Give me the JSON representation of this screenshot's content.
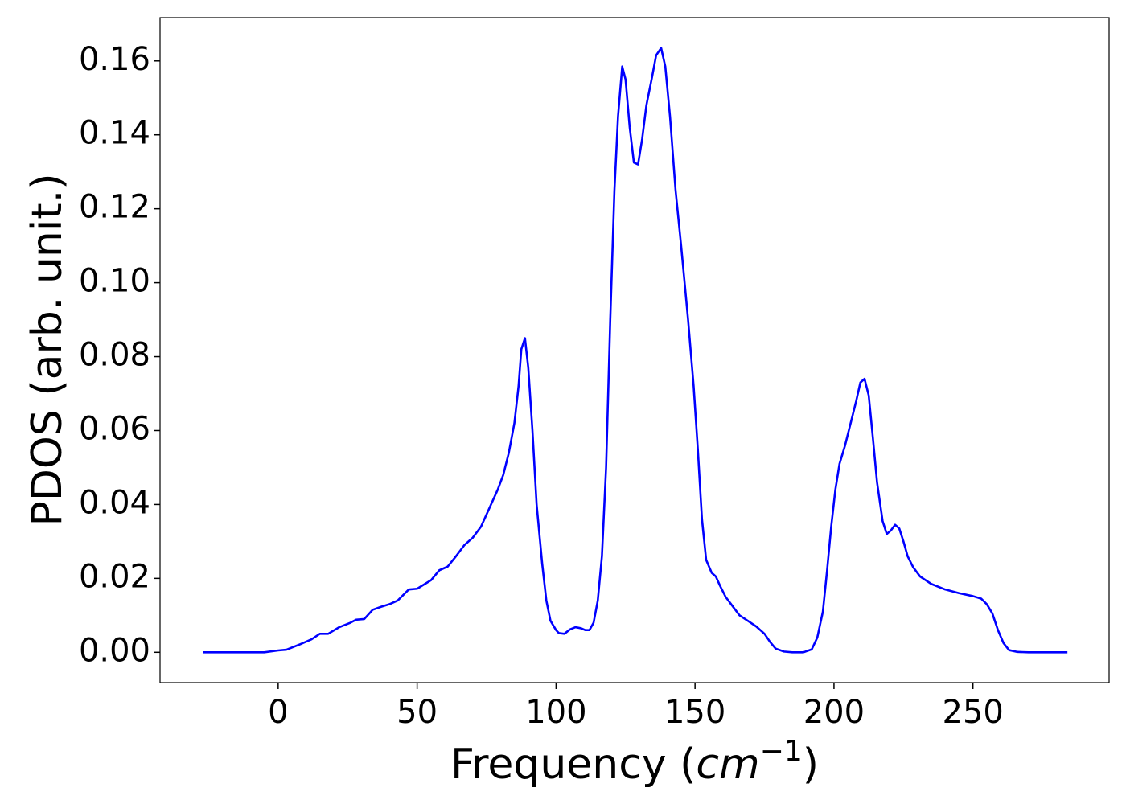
{
  "chart_data": {
    "type": "line",
    "ylabel": "PDOS (arb. unit.)",
    "xlabel": [
      "Frequency (",
      "cm",
      "−1",
      ")"
    ],
    "color": "#0000ff",
    "xlim": [
      -42.5,
      299.0
    ],
    "ylim": [
      -0.0082,
      0.1717
    ],
    "xticks": [
      0,
      50,
      100,
      150,
      200,
      250
    ],
    "yticks": [
      {
        "value": 0,
        "label": "0.00"
      },
      {
        "value": 0.02,
        "label": "0.02"
      },
      {
        "value": 0.04,
        "label": "0.04"
      },
      {
        "value": 0.06,
        "label": "0.06"
      },
      {
        "value": 0.08,
        "label": "0.08"
      },
      {
        "value": 0.1,
        "label": "0.10"
      },
      {
        "value": 0.12,
        "label": "0.12"
      },
      {
        "value": 0.14,
        "label": "0.14"
      },
      {
        "value": 0.16,
        "label": "0.16"
      }
    ],
    "x": [
      -27,
      -5,
      0,
      3,
      8,
      12,
      15,
      18,
      22,
      26,
      28,
      31,
      34,
      37,
      40,
      43,
      47,
      50,
      55,
      58,
      61,
      64,
      67,
      70,
      73,
      76,
      79,
      81,
      83,
      85,
      86.5,
      87.5,
      88.8,
      90,
      91.5,
      93,
      95,
      96.5,
      98,
      100,
      101,
      103,
      105,
      107,
      109,
      110.5,
      112,
      113.5,
      115,
      116.5,
      118,
      119.5,
      121,
      122.3,
      123.8,
      125,
      126.5,
      128,
      129.5,
      131,
      132.5,
      134.5,
      136,
      137.8,
      139.3,
      141,
      143,
      145,
      147.5,
      149.5,
      151,
      152.5,
      154,
      156,
      157.5,
      159,
      161,
      163,
      166,
      169,
      172,
      175,
      177,
      179,
      182,
      185,
      189,
      192,
      194,
      196,
      197.5,
      199,
      200.5,
      202,
      204,
      206,
      208,
      209.5,
      211,
      212.5,
      214,
      215.5,
      217.5,
      219,
      220.5,
      222,
      223.5,
      225,
      226.5,
      228.5,
      231,
      235,
      240,
      245,
      250,
      253,
      255,
      257,
      259,
      261,
      263,
      266,
      270,
      284
    ],
    "values": [
      0,
      0,
      0.0005,
      0.0007,
      0.0022,
      0.0035,
      0.005,
      0.005,
      0.0068,
      0.008,
      0.0088,
      0.009,
      0.0115,
      0.0123,
      0.013,
      0.014,
      0.017,
      0.0172,
      0.0195,
      0.0222,
      0.0232,
      0.026,
      0.029,
      0.031,
      0.034,
      0.039,
      0.044,
      0.048,
      0.054,
      0.062,
      0.072,
      0.082,
      0.085,
      0.077,
      0.06,
      0.04,
      0.024,
      0.014,
      0.0085,
      0.006,
      0.0052,
      0.005,
      0.0062,
      0.0068,
      0.0065,
      0.006,
      0.006,
      0.008,
      0.014,
      0.026,
      0.05,
      0.09,
      0.125,
      0.145,
      0.1585,
      0.155,
      0.142,
      0.1325,
      0.132,
      0.139,
      0.148,
      0.1555,
      0.1615,
      0.1635,
      0.1585,
      0.145,
      0.125,
      0.11,
      0.09,
      0.072,
      0.055,
      0.036,
      0.025,
      0.0215,
      0.0205,
      0.018,
      0.015,
      0.013,
      0.01,
      0.0085,
      0.007,
      0.005,
      0.0028,
      0.001,
      0.0002,
      0,
      0,
      0.0008,
      0.004,
      0.011,
      0.022,
      0.034,
      0.044,
      0.051,
      0.056,
      0.062,
      0.068,
      0.073,
      0.074,
      0.0695,
      0.058,
      0.046,
      0.0355,
      0.032,
      0.033,
      0.0345,
      0.0335,
      0.03,
      0.026,
      0.023,
      0.0205,
      0.0185,
      0.017,
      0.016,
      0.0152,
      0.0145,
      0.013,
      0.0105,
      0.006,
      0.0025,
      0.0006,
      0.0001,
      0,
      0
    ]
  }
}
